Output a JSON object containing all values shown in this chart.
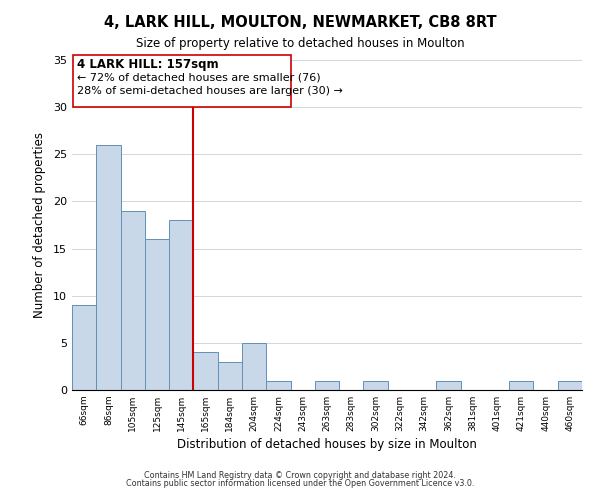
{
  "title": "4, LARK HILL, MOULTON, NEWMARKET, CB8 8RT",
  "subtitle": "Size of property relative to detached houses in Moulton",
  "xlabel": "Distribution of detached houses by size in Moulton",
  "ylabel": "Number of detached properties",
  "bin_labels": [
    "66sqm",
    "86sqm",
    "105sqm",
    "125sqm",
    "145sqm",
    "165sqm",
    "184sqm",
    "204sqm",
    "224sqm",
    "243sqm",
    "263sqm",
    "283sqm",
    "302sqm",
    "322sqm",
    "342sqm",
    "362sqm",
    "381sqm",
    "401sqm",
    "421sqm",
    "440sqm",
    "460sqm"
  ],
  "bar_values": [
    9,
    26,
    19,
    16,
    18,
    4,
    3,
    5,
    1,
    0,
    1,
    0,
    1,
    0,
    0,
    1,
    0,
    0,
    1,
    0,
    1
  ],
  "bar_color": "#c8d8e8",
  "bar_edge_color": "#6090b8",
  "vline_x_label": "165sqm",
  "vline_color": "#cc0000",
  "ylim": [
    0,
    35
  ],
  "yticks": [
    0,
    5,
    10,
    15,
    20,
    25,
    30,
    35
  ],
  "annotation_title": "4 LARK HILL: 157sqm",
  "annotation_line1": "← 72% of detached houses are smaller (76)",
  "annotation_line2": "28% of semi-detached houses are larger (30) →",
  "footer1": "Contains HM Land Registry data © Crown copyright and database right 2024.",
  "footer2": "Contains public sector information licensed under the Open Government Licence v3.0.",
  "background_color": "#ffffff",
  "grid_color": "#d0d8e0"
}
